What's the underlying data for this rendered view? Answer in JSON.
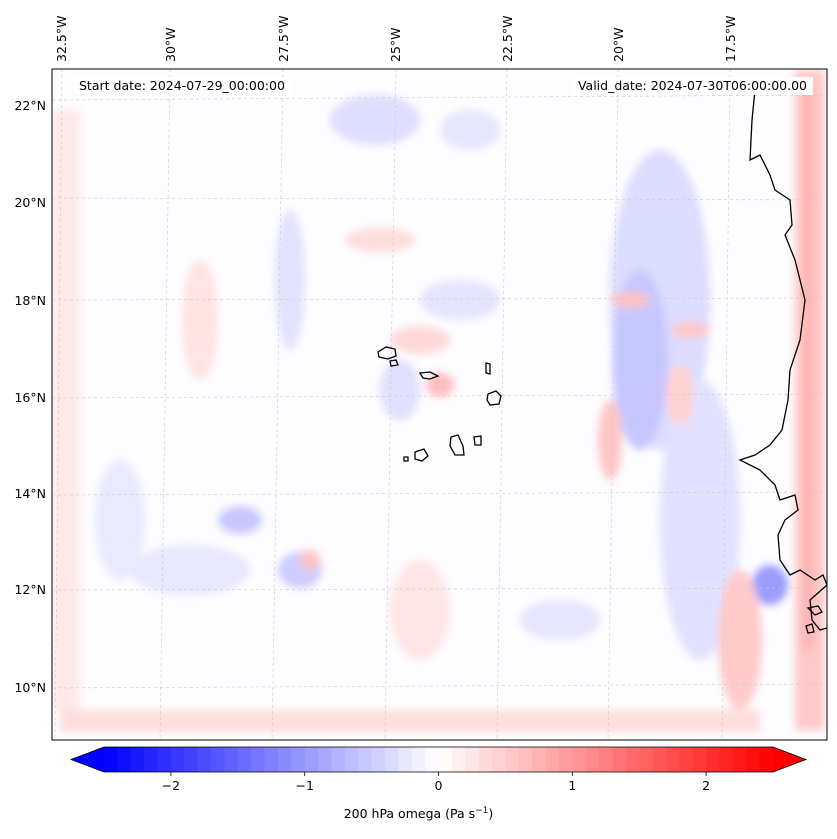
{
  "header": {
    "start_date": "Start date: 2024-07-29_00:00:00",
    "valid_date": "Valid_date: 2024-07-30T06:00:00.00"
  },
  "map": {
    "lon_ticks": [
      "32.5°W",
      "30°W",
      "27.5°W",
      "25°W",
      "22.5°W",
      "20°W",
      "17.5°W"
    ],
    "lat_ticks": [
      "22°N",
      "20°N",
      "18°N",
      "16°N",
      "14°N",
      "12°N",
      "10°N"
    ],
    "field_colors": {
      "negative": "#0000ff",
      "zero": "#ffffff",
      "positive": "#ff0000"
    },
    "gridlines": true,
    "features": [
      "Cape Verde islands",
      "West African coastline"
    ]
  },
  "colorbar": {
    "tick_labels": [
      "−2",
      "−1",
      "0",
      "1",
      "2"
    ],
    "tick_values": [
      -2,
      -1,
      0,
      1,
      2
    ],
    "range": [
      -2.5,
      2.5
    ],
    "label_main": "200 hPa omega (Pa s",
    "label_sup": "−1",
    "label_end": ")",
    "extend": "both"
  }
}
